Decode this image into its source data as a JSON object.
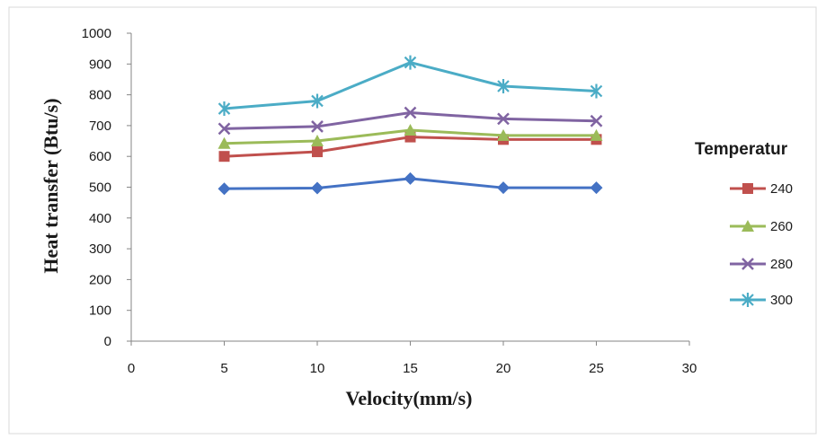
{
  "chart_data": {
    "type": "line",
    "title": "",
    "xlabel": "Velocity(mm/s)",
    "ylabel": "Heat transfer (Btu/s)",
    "xlim": [
      0,
      30
    ],
    "ylim": [
      0,
      1000
    ],
    "x_ticks": [
      0,
      5,
      10,
      15,
      20,
      25,
      30
    ],
    "y_ticks": [
      0,
      100,
      200,
      300,
      400,
      500,
      600,
      700,
      800,
      900,
      1000
    ],
    "grid": false,
    "legend_title": "Temperatur",
    "legend_position": "right",
    "x": [
      5,
      10,
      15,
      20,
      25
    ],
    "series": [
      {
        "name": "",
        "color": "#4472C4",
        "marker": "diamond",
        "values": [
          495,
          497,
          528,
          498,
          498
        ]
      },
      {
        "name": "240",
        "color": "#C0504D",
        "marker": "square",
        "values": [
          600,
          615,
          663,
          655,
          655
        ]
      },
      {
        "name": "260",
        "color": "#9BBB59",
        "marker": "triangle",
        "values": [
          642,
          650,
          685,
          668,
          668
        ]
      },
      {
        "name": "280",
        "color": "#8064A2",
        "marker": "x",
        "values": [
          690,
          697,
          742,
          722,
          715
        ]
      },
      {
        "name": "300",
        "color": "#4BACC6",
        "marker": "star",
        "values": [
          755,
          780,
          905,
          828,
          812
        ]
      }
    ]
  }
}
